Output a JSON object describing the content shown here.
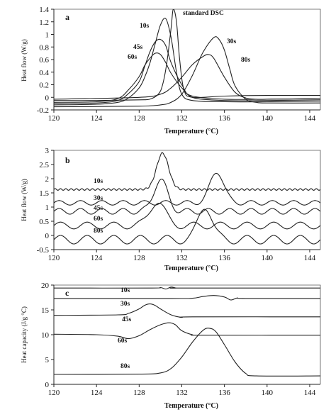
{
  "chart_data": [
    {
      "type": "line",
      "panel_label": "a",
      "xlabel": "Temperature (°C)",
      "ylabel": "Heat flow (W/g)",
      "xlim": [
        120,
        145
      ],
      "ylim": [
        -0.2,
        1.4
      ],
      "xticks": [
        120,
        124,
        128,
        132,
        136,
        140,
        144
      ],
      "xtick_labels": [
        "120",
        "124",
        "128",
        "132",
        "136",
        "140",
        "144"
      ],
      "yticks": [
        -0.2,
        0,
        0.2,
        0.4,
        0.6,
        0.8,
        1.0,
        1.2,
        1.4
      ],
      "ytick_labels": [
        "-0.2",
        "0",
        "0.2",
        "0.4",
        "0.6",
        "0.8",
        "1",
        "1.2",
        "1.4"
      ],
      "annotations": [
        "10s",
        "standard DSC",
        "45s",
        "60s",
        "30s",
        "80s"
      ],
      "series": [
        {
          "name": "10s",
          "x": [
            120,
            124,
            126,
            127,
            128,
            128.5,
            129,
            129.5,
            130,
            130.5,
            131,
            131.5,
            132,
            133,
            136,
            140,
            145
          ],
          "y": [
            -0.12,
            -0.11,
            -0.08,
            -0.01,
            0.15,
            0.31,
            0.54,
            0.85,
            1.15,
            1.25,
            0.95,
            0.4,
            0.05,
            -0.05,
            -0.07,
            -0.07,
            -0.06
          ]
        },
        {
          "name": "standard DSC",
          "x": [
            120,
            124,
            128,
            129,
            129.8,
            130.2,
            130.6,
            131,
            131.2,
            131.5,
            131.8,
            132.2,
            133,
            136,
            140,
            145
          ],
          "y": [
            -0.05,
            -0.05,
            -0.04,
            -0.03,
            0.05,
            0.2,
            0.55,
            1.1,
            1.4,
            1.2,
            0.6,
            0.12,
            0.0,
            0.02,
            0.03,
            0.03
          ]
        },
        {
          "name": "45s",
          "x": [
            120,
            124,
            126,
            127,
            128,
            128.5,
            129,
            129.5,
            130,
            130.5,
            131,
            132,
            133,
            136,
            140,
            145
          ],
          "y": [
            -0.1,
            -0.09,
            -0.05,
            0.06,
            0.25,
            0.48,
            0.72,
            0.88,
            0.92,
            0.82,
            0.55,
            0.2,
            0.0,
            -0.05,
            -0.05,
            -0.04
          ]
        },
        {
          "name": "60s",
          "x": [
            120,
            124,
            126,
            127,
            128,
            128.5,
            129,
            129.5,
            130,
            130.5,
            131,
            132,
            133,
            136,
            140,
            145
          ],
          "y": [
            -0.08,
            -0.07,
            -0.02,
            0.12,
            0.33,
            0.5,
            0.62,
            0.7,
            0.68,
            0.55,
            0.38,
            0.15,
            0.02,
            -0.03,
            -0.03,
            -0.02
          ]
        },
        {
          "name": "30s",
          "x": [
            120,
            128,
            130,
            131,
            132,
            133,
            134,
            135,
            135.5,
            136,
            136.5,
            137,
            138,
            139,
            140,
            145
          ],
          "y": [
            -0.15,
            -0.14,
            -0.12,
            -0.08,
            0.05,
            0.35,
            0.72,
            0.95,
            0.92,
            0.75,
            0.45,
            0.18,
            -0.03,
            -0.08,
            -0.09,
            -0.09
          ]
        },
        {
          "name": "80s",
          "x": [
            120,
            128,
            130,
            131,
            132,
            133,
            134,
            134.5,
            135,
            136,
            137,
            138,
            139,
            140,
            145
          ],
          "y": [
            -0.03,
            0.0,
            0.05,
            0.15,
            0.32,
            0.52,
            0.65,
            0.68,
            0.62,
            0.32,
            0.08,
            -0.01,
            -0.03,
            -0.03,
            -0.02
          ]
        }
      ]
    },
    {
      "type": "line",
      "panel_label": "b",
      "xlabel": "Temperature (°C)",
      "ylabel": "Heat flow (W/g)",
      "xlim": [
        120,
        145
      ],
      "ylim": [
        -0.5,
        3
      ],
      "xticks": [
        120,
        124,
        128,
        132,
        136,
        140,
        144
      ],
      "xtick_labels": [
        "120",
        "124",
        "128",
        "132",
        "136",
        "140",
        "144"
      ],
      "yticks": [
        -0.5,
        0,
        0.5,
        1,
        1.5,
        2,
        2.5,
        3
      ],
      "ytick_labels": [
        "-0.5",
        "0",
        "0.5",
        "1",
        "1.5",
        "2",
        "2.5",
        "3"
      ],
      "annotations": [
        "10s",
        "30s",
        "45s",
        "60s",
        "80s"
      ],
      "series": [
        {
          "name": "10s",
          "baseline": 1.62,
          "wiggle": 0.03,
          "period": 0.5,
          "peak_center": 130.2,
          "peak_width": 0.8,
          "peak_height": 1.28
        },
        {
          "name": "30s",
          "baseline": 1.15,
          "wiggle": 0.08,
          "period": 2.0,
          "peak_center": 135.3,
          "peak_width": 0.9,
          "peak_height": 1.1
        },
        {
          "name": "45s",
          "baseline": 0.85,
          "wiggle": 0.1,
          "period": 2.0,
          "peak_center": 130.0,
          "peak_width": 0.9,
          "peak_height": 1.12
        },
        {
          "name": "60s",
          "baseline": 0.35,
          "wiggle": 0.12,
          "period": 2.5,
          "peak_center": 129.7,
          "peak_width": 1.0,
          "peak_height": 0.85
        },
        {
          "name": "80s",
          "baseline": -0.15,
          "wiggle": 0.15,
          "period": 2.5,
          "peak_center": 134.2,
          "peak_width": 0.9,
          "peak_height": 1.2
        }
      ]
    },
    {
      "type": "line",
      "panel_label": "c",
      "xlabel": "Temperature (°C)",
      "ylabel": "Heat capacity (J/g °C)",
      "xlim": [
        120,
        145
      ],
      "ylim": [
        0,
        20
      ],
      "xticks": [
        120,
        124,
        128,
        132,
        136,
        140,
        144
      ],
      "xtick_labels": [
        "120",
        "124",
        "128",
        "132",
        "136",
        "140",
        "144"
      ],
      "yticks": [
        0,
        5,
        10,
        15,
        20
      ],
      "ytick_labels": [
        "0",
        "5",
        "10",
        "15",
        "20"
      ],
      "annotations": [
        "10s",
        "30s",
        "45s",
        "60s",
        "80s"
      ],
      "series": [
        {
          "name": "10s",
          "x": [
            120,
            129,
            130,
            130.5,
            131,
            131.5,
            132,
            145
          ],
          "y": [
            19.4,
            19.4,
            19.5,
            19.2,
            19.6,
            19.4,
            19.4,
            19.4
          ]
        },
        {
          "name": "30s",
          "x": [
            120,
            131,
            133,
            134,
            135,
            136,
            136.6,
            137.2,
            138,
            145
          ],
          "y": [
            17.3,
            17.3,
            17.35,
            17.7,
            17.9,
            17.6,
            17.0,
            17.4,
            17.3,
            17.3
          ]
        },
        {
          "name": "45s",
          "x": [
            120,
            126,
            127,
            128,
            128.5,
            129,
            129.5,
            130,
            131,
            132,
            133,
            145
          ],
          "y": [
            13.9,
            14.0,
            14.3,
            15.2,
            15.9,
            16.2,
            15.9,
            15.2,
            14.0,
            13.5,
            13.6,
            13.6
          ]
        },
        {
          "name": "60s",
          "x": [
            120,
            124,
            126,
            127,
            128,
            129,
            130,
            130.8,
            131.4,
            132,
            133,
            134,
            145
          ],
          "y": [
            10.1,
            10.0,
            9.7,
            9.2,
            9.8,
            11.0,
            12.0,
            12.4,
            12.0,
            10.8,
            10.0,
            9.9,
            9.9
          ]
        },
        {
          "name": "80s",
          "x": [
            120,
            128,
            130,
            131,
            132,
            133,
            134,
            134.6,
            135.2,
            136,
            137,
            138,
            139,
            145
          ],
          "y": [
            2.0,
            2.05,
            2.3,
            3.2,
            5.5,
            8.5,
            10.9,
            11.3,
            10.6,
            8.0,
            4.5,
            2.2,
            1.7,
            1.7
          ]
        }
      ]
    }
  ]
}
